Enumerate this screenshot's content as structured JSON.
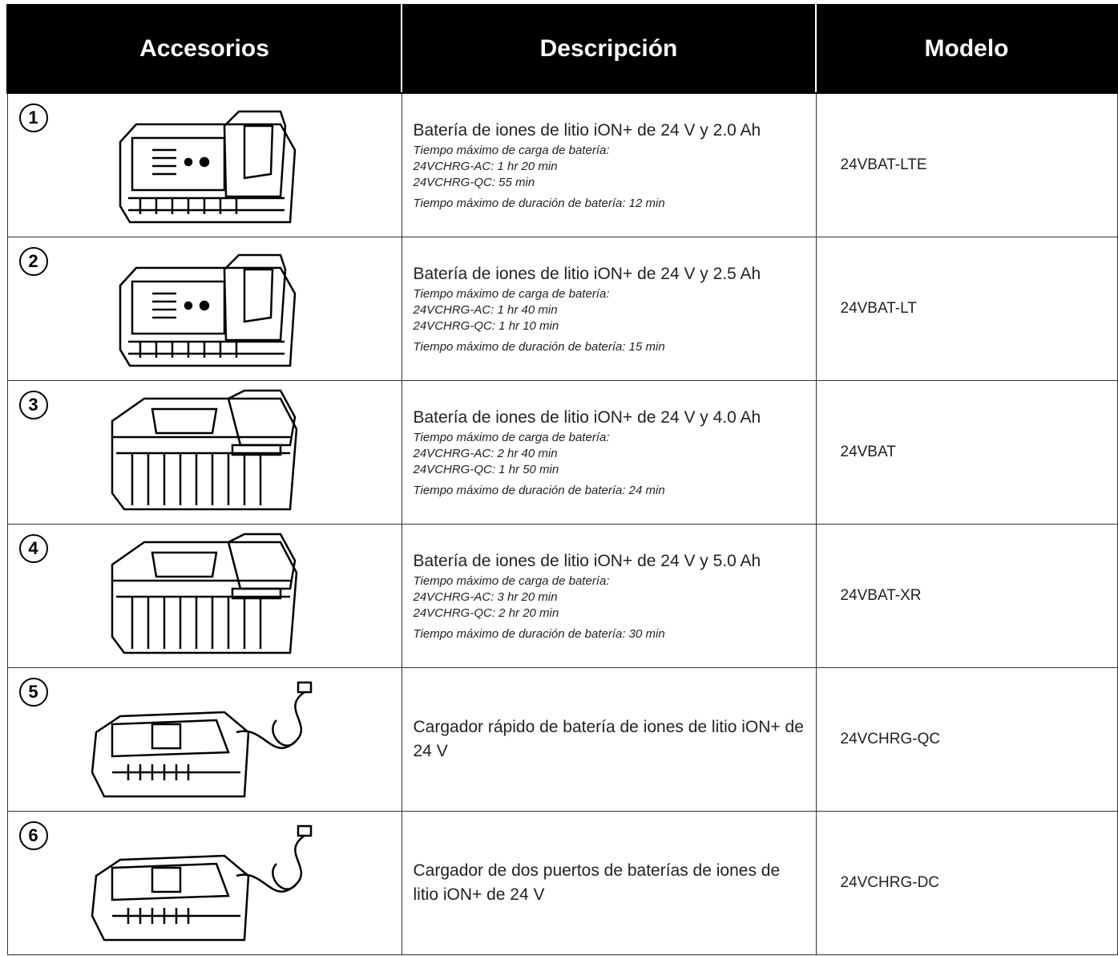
{
  "header": {
    "accessories": "Accesorios",
    "description": "Descripción",
    "model": "Modelo"
  },
  "rows": [
    {
      "number": "1",
      "title": "Batería de iones de litio iON+ de 24 V y 2.0 Ah",
      "charge_label": "Tiempo máximo de carga de batería:",
      "charge_times": [
        "24VCHRG-AC: 1 hr 20 min",
        "24VCHRG-QC: 55 min"
      ],
      "runtime": "Tiempo máximo de duración de batería: 12 min",
      "model": "24VBAT-LTE"
    },
    {
      "number": "2",
      "title": "Batería de iones de litio iON+ de 24 V y 2.5 Ah",
      "charge_label": "Tiempo máximo de carga de batería:",
      "charge_times": [
        "24VCHRG-AC: 1 hr 40 min",
        "24VCHRG-QC: 1 hr 10 min"
      ],
      "runtime": "Tiempo máximo de duración de batería: 15 min",
      "model": "24VBAT-LT"
    },
    {
      "number": "3",
      "title": "Batería de iones de litio iON+ de 24 V y 4.0 Ah",
      "charge_label": "Tiempo máximo de carga de batería:",
      "charge_times": [
        "24VCHRG-AC: 2 hr 40 min",
        "24VCHRG-QC: 1 hr 50 min"
      ],
      "runtime": "Tiempo máximo de duración de batería: 24 min",
      "model": "24VBAT"
    },
    {
      "number": "4",
      "title": "Batería de iones de litio iON+ de 24 V y 5.0 Ah",
      "charge_label": "Tiempo máximo de carga de batería:",
      "charge_times": [
        "24VCHRG-AC: 3 hr 20 min",
        "24VCHRG-QC: 2 hr 20 min"
      ],
      "runtime": "Tiempo máximo de duración de batería: 30 min",
      "model": "24VBAT-XR"
    },
    {
      "number": "5",
      "title": "Cargador rápido de batería de iones de litio iON+ de 24 V",
      "model": "24VCHRG-QC"
    },
    {
      "number": "6",
      "title": "Cargador de dos puertos de baterías de iones de litio iON+ de 24 V",
      "model": "24VCHRG-DC"
    }
  ]
}
